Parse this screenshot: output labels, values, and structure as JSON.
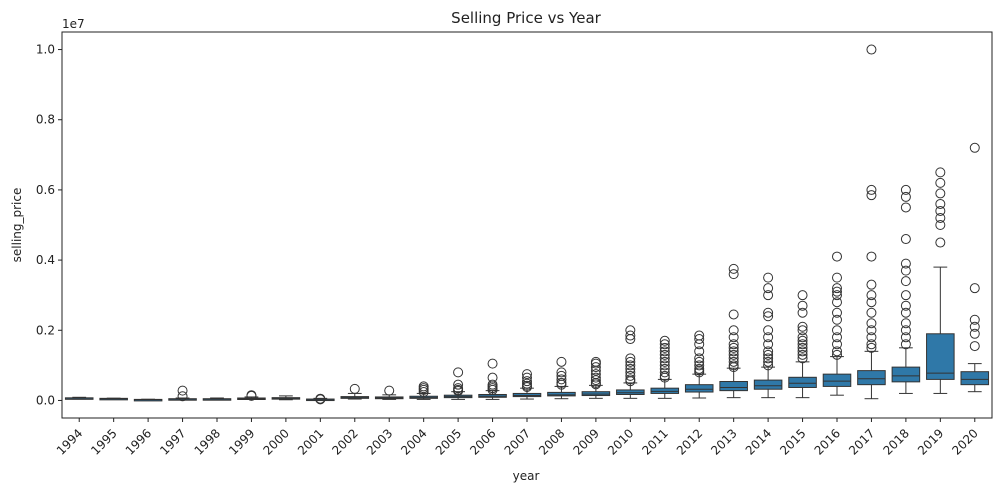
{
  "chart_data": {
    "type": "box",
    "title": "Selling Price vs Year",
    "xlabel": "year",
    "ylabel": "selling_price",
    "y_offset_label": "1e7",
    "ylim": [
      -0.05,
      1.05
    ],
    "y_ticks": [
      0.0,
      0.2,
      0.4,
      0.6,
      0.8,
      1.0
    ],
    "y_tick_labels": [
      "0.0",
      "0.2",
      "0.4",
      "0.6",
      "0.8",
      "1.0"
    ],
    "box_color": "#2f78a8",
    "line_color": "#333333",
    "categories": [
      "1994",
      "1995",
      "1996",
      "1997",
      "1998",
      "1999",
      "2000",
      "2001",
      "2002",
      "2003",
      "2004",
      "2005",
      "2006",
      "2007",
      "2008",
      "2009",
      "2010",
      "2011",
      "2012",
      "2013",
      "2014",
      "2015",
      "2016",
      "2017",
      "2018",
      "2019",
      "2020"
    ],
    "boxes": [
      {
        "q1": 0.0055,
        "median": 0.0065,
        "q3": 0.0075,
        "whislo": 0.004,
        "whishi": 0.009,
        "fliers": []
      },
      {
        "q1": 0.0045,
        "median": 0.005,
        "q3": 0.006,
        "whislo": 0.004,
        "whishi": 0.0065,
        "fliers": []
      },
      {
        "q1": 0.002,
        "median": 0.0025,
        "q3": 0.003,
        "whislo": 0.0015,
        "whishi": 0.0035,
        "fliers": []
      },
      {
        "q1": 0.003,
        "median": 0.004,
        "q3": 0.005,
        "whislo": 0.002,
        "whishi": 0.007,
        "fliers": [
          0.028,
          0.012
        ]
      },
      {
        "q1": 0.003,
        "median": 0.004,
        "q3": 0.005,
        "whislo": 0.002,
        "whishi": 0.007,
        "fliers": []
      },
      {
        "q1": 0.004,
        "median": 0.005,
        "q3": 0.007,
        "whislo": 0.003,
        "whishi": 0.01,
        "fliers": [
          0.015,
          0.013
        ]
      },
      {
        "q1": 0.004,
        "median": 0.006,
        "q3": 0.008,
        "whislo": 0.002,
        "whishi": 0.013,
        "fliers": []
      },
      {
        "q1": 0.002,
        "median": 0.003,
        "q3": 0.004,
        "whislo": 0.001,
        "whishi": 0.006,
        "fliers": [
          0.005,
          0.003
        ]
      },
      {
        "q1": 0.006,
        "median": 0.008,
        "q3": 0.011,
        "whislo": 0.004,
        "whishi": 0.02,
        "fliers": [
          0.033
        ]
      },
      {
        "q1": 0.005,
        "median": 0.007,
        "q3": 0.01,
        "whislo": 0.003,
        "whishi": 0.016,
        "fliers": [
          0.028
        ]
      },
      {
        "q1": 0.006,
        "median": 0.008,
        "q3": 0.012,
        "whislo": 0.003,
        "whishi": 0.02,
        "fliers": [
          0.04,
          0.035,
          0.03,
          0.024
        ]
      },
      {
        "q1": 0.008,
        "median": 0.011,
        "q3": 0.015,
        "whislo": 0.003,
        "whishi": 0.025,
        "fliers": [
          0.08,
          0.045,
          0.035,
          0.03,
          0.027
        ]
      },
      {
        "q1": 0.009,
        "median": 0.012,
        "q3": 0.017,
        "whislo": 0.003,
        "whishi": 0.028,
        "fliers": [
          0.105,
          0.065,
          0.045,
          0.04,
          0.035,
          0.03
        ]
      },
      {
        "q1": 0.011,
        "median": 0.014,
        "q3": 0.02,
        "whislo": 0.004,
        "whishi": 0.035,
        "fliers": [
          0.075,
          0.065,
          0.055,
          0.048,
          0.042,
          0.038
        ]
      },
      {
        "q1": 0.013,
        "median": 0.016,
        "q3": 0.023,
        "whislo": 0.005,
        "whishi": 0.04,
        "fliers": [
          0.11,
          0.08,
          0.07,
          0.06,
          0.05,
          0.045
        ]
      },
      {
        "q1": 0.014,
        "median": 0.018,
        "q3": 0.025,
        "whislo": 0.006,
        "whishi": 0.043,
        "fliers": [
          0.11,
          0.105,
          0.095,
          0.085,
          0.075,
          0.065,
          0.058,
          0.05,
          0.046
        ]
      },
      {
        "q1": 0.017,
        "median": 0.022,
        "q3": 0.03,
        "whislo": 0.006,
        "whishi": 0.05,
        "fliers": [
          0.2,
          0.185,
          0.175,
          0.12,
          0.11,
          0.1,
          0.09,
          0.08,
          0.07,
          0.06,
          0.055
        ]
      },
      {
        "q1": 0.02,
        "median": 0.026,
        "q3": 0.035,
        "whislo": 0.006,
        "whishi": 0.06,
        "fliers": [
          0.17,
          0.16,
          0.15,
          0.14,
          0.13,
          0.12,
          0.11,
          0.1,
          0.09,
          0.08,
          0.07,
          0.065
        ]
      },
      {
        "q1": 0.024,
        "median": 0.032,
        "q3": 0.045,
        "whislo": 0.007,
        "whishi": 0.075,
        "fliers": [
          0.185,
          0.175,
          0.16,
          0.14,
          0.12,
          0.11,
          0.1,
          0.09,
          0.085,
          0.08
        ]
      },
      {
        "q1": 0.028,
        "median": 0.037,
        "q3": 0.054,
        "whislo": 0.008,
        "whishi": 0.092,
        "fliers": [
          0.375,
          0.36,
          0.245,
          0.2,
          0.18,
          0.16,
          0.15,
          0.14,
          0.13,
          0.12,
          0.11,
          0.1,
          0.095
        ]
      },
      {
        "q1": 0.032,
        "median": 0.042,
        "q3": 0.058,
        "whislo": 0.008,
        "whishi": 0.095,
        "fliers": [
          0.35,
          0.32,
          0.3,
          0.25,
          0.24,
          0.2,
          0.18,
          0.16,
          0.14,
          0.13,
          0.12,
          0.11,
          0.1
        ]
      },
      {
        "q1": 0.037,
        "median": 0.049,
        "q3": 0.066,
        "whislo": 0.008,
        "whishi": 0.11,
        "fliers": [
          0.3,
          0.27,
          0.25,
          0.21,
          0.2,
          0.18,
          0.17,
          0.16,
          0.15,
          0.14,
          0.13,
          0.12
        ]
      },
      {
        "q1": 0.04,
        "median": 0.055,
        "q3": 0.075,
        "whislo": 0.015,
        "whishi": 0.125,
        "fliers": [
          0.41,
          0.35,
          0.32,
          0.31,
          0.3,
          0.28,
          0.25,
          0.23,
          0.2,
          0.18,
          0.16,
          0.14,
          0.13
        ]
      },
      {
        "q1": 0.045,
        "median": 0.062,
        "q3": 0.085,
        "whislo": 0.005,
        "whishi": 0.14,
        "fliers": [
          1.0,
          0.6,
          0.585,
          0.41,
          0.33,
          0.3,
          0.28,
          0.25,
          0.22,
          0.2,
          0.18,
          0.16,
          0.15
        ]
      },
      {
        "q1": 0.053,
        "median": 0.07,
        "q3": 0.095,
        "whislo": 0.02,
        "whishi": 0.15,
        "fliers": [
          0.6,
          0.58,
          0.55,
          0.46,
          0.39,
          0.37,
          0.34,
          0.3,
          0.27,
          0.25,
          0.22,
          0.2,
          0.18,
          0.16
        ]
      },
      {
        "q1": 0.06,
        "median": 0.078,
        "q3": 0.19,
        "whislo": 0.02,
        "whishi": 0.38,
        "fliers": [
          0.65,
          0.62,
          0.59,
          0.56,
          0.54,
          0.52,
          0.5,
          0.45
        ]
      },
      {
        "q1": 0.045,
        "median": 0.06,
        "q3": 0.082,
        "whislo": 0.025,
        "whishi": 0.105,
        "fliers": [
          0.72,
          0.32,
          0.23,
          0.21,
          0.19,
          0.155
        ]
      }
    ]
  }
}
